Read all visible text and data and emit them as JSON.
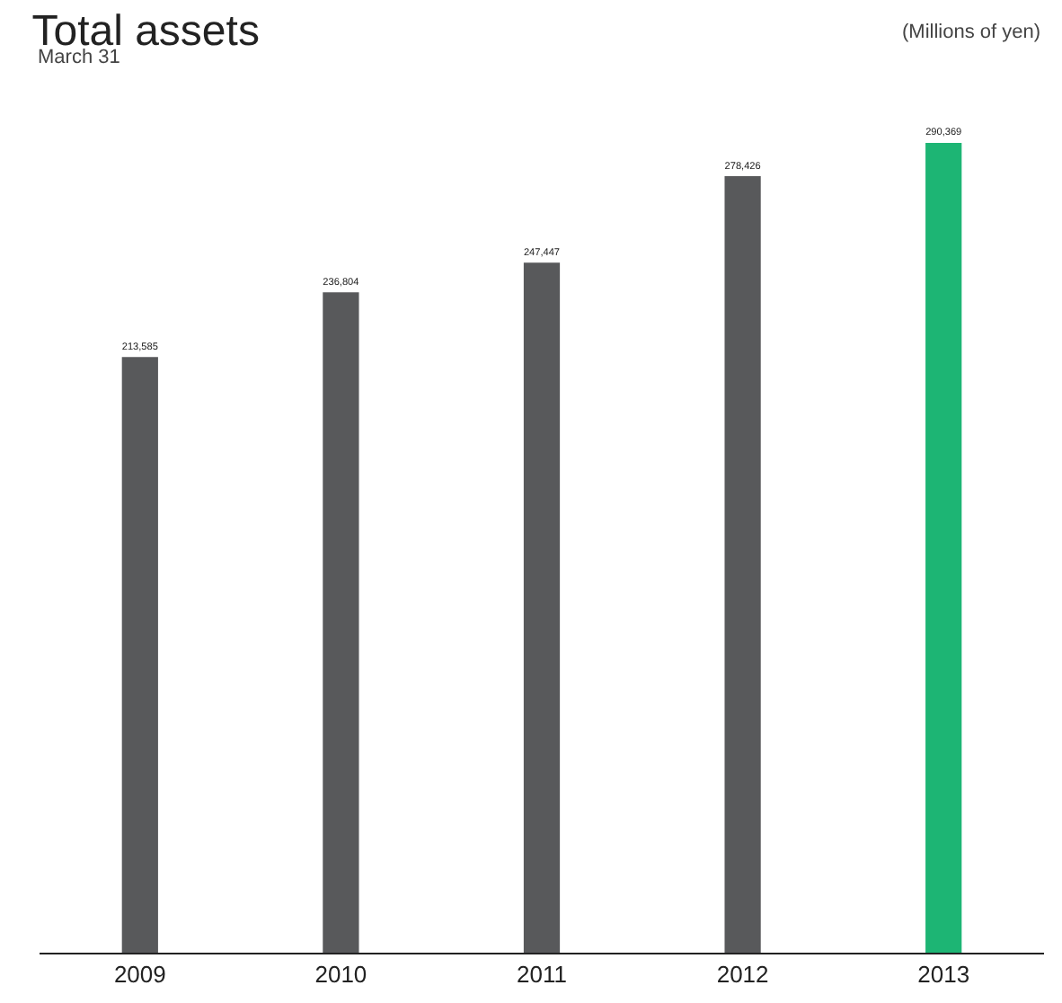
{
  "chart_data": {
    "type": "bar",
    "title": "Total assets",
    "subtitle": "March 31",
    "annotations": [
      "(Millions of yen)"
    ],
    "categories": [
      "2009",
      "2010",
      "2011",
      "2012",
      "2013"
    ],
    "values": [
      213585,
      236804,
      247447,
      278426,
      290369
    ],
    "colors": [
      "#58595b",
      "#58595b",
      "#58595b",
      "#58595b",
      "#1db574"
    ],
    "value_labels": [
      "213,585",
      "236,804",
      "247,447",
      "278,426",
      "290,369"
    ],
    "grid": false,
    "legend": false
  }
}
